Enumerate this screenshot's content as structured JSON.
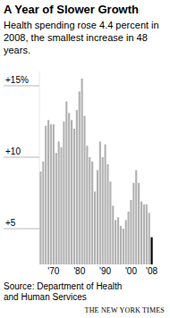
{
  "chart_data": {
    "type": "bar",
    "title": "A Year of Slower Growth",
    "subtitle": "Health spending rose 4.4 percent in 2008, the smallest increase in 48 years.",
    "source": "Source: Department of Health and Human Services",
    "credit": "THE NEW YORK TIMES",
    "categories": [
      null,
      null,
      null,
      null,
      null,
      "'70",
      null,
      null,
      null,
      null,
      null,
      null,
      null,
      null,
      null,
      "'80",
      null,
      null,
      null,
      null,
      null,
      null,
      null,
      null,
      null,
      "'90",
      null,
      null,
      null,
      null,
      null,
      null,
      null,
      null,
      null,
      "'00",
      null,
      null,
      null,
      null,
      null,
      null,
      null,
      "'08"
    ],
    "values": [
      9.0,
      9.7,
      12.2,
      12.6,
      12.3,
      12.3,
      10.3,
      11.1,
      10.7,
      12.5,
      13.9,
      13.1,
      12.6,
      12.0,
      13.3,
      14.6,
      15.5,
      12.9,
      10.8,
      10.0,
      9.7,
      7.6,
      9.1,
      11.1,
      10.0,
      10.9,
      9.5,
      8.3,
      6.6,
      5.6,
      5.8,
      5.2,
      5.0,
      5.6,
      6.2,
      7.0,
      8.2,
      9.1,
      8.2,
      6.9,
      6.7,
      6.7,
      6.1,
      4.4
    ],
    "color": "#b3b3b3",
    "colors": [
      "#b3b3b3",
      "#b3b3b3",
      "#b3b3b3",
      "#b3b3b3",
      "#b3b3b3",
      "#b3b3b3",
      "#b3b3b3",
      "#b3b3b3",
      "#b3b3b3",
      "#b3b3b3",
      "#b3b3b3",
      "#b3b3b3",
      "#b3b3b3",
      "#b3b3b3",
      "#b3b3b3",
      "#b3b3b3",
      "#b3b3b3",
      "#b3b3b3",
      "#b3b3b3",
      "#b3b3b3",
      "#b3b3b3",
      "#b3b3b3",
      "#b3b3b3",
      "#b3b3b3",
      "#b3b3b3",
      "#b3b3b3",
      "#b3b3b3",
      "#b3b3b3",
      "#b3b3b3",
      "#b3b3b3",
      "#b3b3b3",
      "#b3b3b3",
      "#b3b3b3",
      "#b3b3b3",
      "#b3b3b3",
      "#b3b3b3",
      "#b3b3b3",
      "#b3b3b3",
      "#b3b3b3",
      "#b3b3b3",
      "#b3b3b3",
      "#b3b3b3",
      "#b3b3b3",
      "#000000"
    ],
    "ylim": [
      2.5,
      16
    ],
    "yticks": [
      {
        "value": 15,
        "label": "+15%"
      },
      {
        "value": 10,
        "label": "+10"
      },
      {
        "value": 5,
        "label": "+5"
      }
    ],
    "grid": false
  }
}
